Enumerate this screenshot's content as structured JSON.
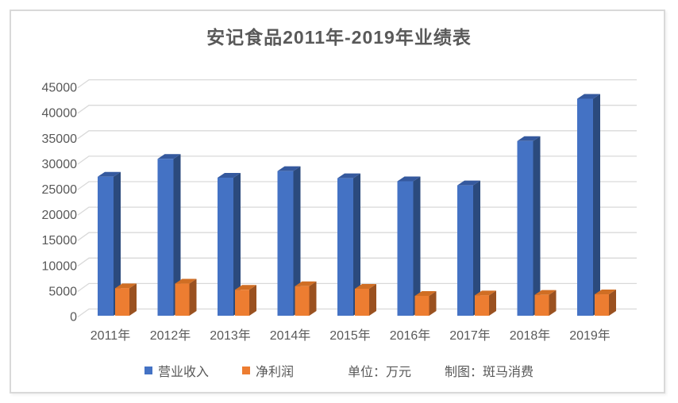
{
  "title": "安记食品2011年-2019年业绩表",
  "chart_data": {
    "type": "bar",
    "style": "3d-clustered-column",
    "title": "安记食品2011年-2019年业绩表",
    "categories": [
      "2011年",
      "2012年",
      "2013年",
      "2014年",
      "2015年",
      "2016年",
      "2017年",
      "2018年",
      "2019年"
    ],
    "series": [
      {
        "name": "营业收入",
        "color": "#4472C4",
        "values": [
          27300,
          30800,
          27100,
          28400,
          27000,
          26400,
          25600,
          34300,
          42600
        ]
      },
      {
        "name": "净利润",
        "color": "#ED7D31",
        "values": [
          5400,
          6300,
          5100,
          5800,
          5300,
          3900,
          4000,
          4100,
          4200
        ]
      }
    ],
    "xlabel": "",
    "ylabel": "",
    "ylim": [
      0,
      45000
    ],
    "ytick_step": 5000,
    "yticks": [
      0,
      5000,
      10000,
      15000,
      20000,
      25000,
      30000,
      35000,
      40000,
      45000
    ],
    "grid": true,
    "legend_position": "bottom"
  },
  "legend": {
    "unit_note": "单位：万元",
    "credit_note": "制图：斑马消费"
  },
  "colors": {
    "revenue": {
      "front": "#4472C4",
      "top": "#35599E",
      "side": "#2B4A7D"
    },
    "net_profit": {
      "front": "#ED7D31",
      "top": "#D06E24",
      "side": "#9A5120"
    },
    "grid": "#D9D9D9",
    "text": "#595959",
    "border": "#D9D9D9"
  }
}
